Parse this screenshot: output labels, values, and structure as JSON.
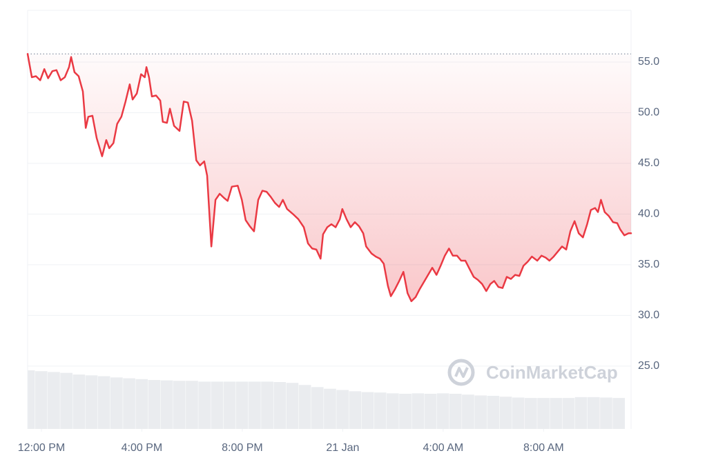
{
  "chart_data": {
    "type": "line",
    "watermark": "CoinMarketCap",
    "color": "#ea3943",
    "reference_line": 55.8,
    "xlim": [
      -33,
      1409
    ],
    "xticks": [
      {
        "value": 0,
        "label": "12:00 PM"
      },
      {
        "value": 240,
        "label": "4:00 PM"
      },
      {
        "value": 480,
        "label": "8:00 PM"
      },
      {
        "value": 720,
        "label": "21 Jan"
      },
      {
        "value": 960,
        "label": "4:00 AM"
      },
      {
        "value": 1200,
        "label": "8:00 AM"
      }
    ],
    "ylim": [
      18.8,
      60.1
    ],
    "yticks": [
      {
        "value": 25,
        "label": "25.0"
      },
      {
        "value": 30,
        "label": "30.0"
      },
      {
        "value": 35,
        "label": "35.0"
      },
      {
        "value": 40,
        "label": "40.0"
      },
      {
        "value": 45,
        "label": "45.0"
      },
      {
        "value": 50,
        "label": "50.0"
      },
      {
        "value": 55,
        "label": "55.0"
      }
    ],
    "grid": true,
    "x": [
      -33,
      -23,
      -13,
      -3,
      7,
      16,
      26,
      36,
      46,
      56,
      66,
      71,
      79,
      89,
      99,
      106,
      112,
      122,
      132,
      145,
      155,
      162,
      172,
      181,
      191,
      201,
      211,
      218,
      228,
      238,
      247,
      251,
      257,
      264,
      274,
      284,
      290,
      300,
      307,
      317,
      330,
      340,
      350,
      360,
      370,
      379,
      389,
      396,
      406,
      416,
      426,
      436,
      445,
      455,
      469,
      479,
      488,
      498,
      508,
      518,
      528,
      538,
      548,
      558,
      568,
      577,
      587,
      601,
      614,
      627,
      637,
      647,
      657,
      667,
      673,
      683,
      693,
      703,
      713,
      719,
      729,
      739,
      749,
      759,
      769,
      776,
      789,
      799,
      809,
      818,
      828,
      835,
      845,
      855,
      865,
      875,
      884,
      894,
      904,
      914,
      924,
      934,
      944,
      954,
      964,
      974,
      983,
      993,
      1003,
      1013,
      1023,
      1033,
      1043,
      1053,
      1063,
      1073,
      1082,
      1092,
      1102,
      1112,
      1122,
      1132,
      1142,
      1152,
      1162,
      1172,
      1185,
      1195,
      1205,
      1214,
      1224,
      1234,
      1244,
      1254,
      1264,
      1274,
      1284,
      1294,
      1304,
      1313,
      1323,
      1330,
      1337,
      1346,
      1356,
      1366,
      1376,
      1383,
      1393,
      1403,
      1409
    ],
    "values": [
      55.8,
      53.5,
      53.6,
      53.2,
      54.3,
      53.4,
      54.1,
      54.2,
      53.2,
      53.5,
      54.5,
      55.5,
      54.0,
      53.6,
      52.1,
      48.5,
      49.6,
      49.7,
      47.5,
      45.7,
      47.3,
      46.5,
      47.0,
      48.9,
      49.6,
      51.1,
      52.8,
      51.3,
      51.9,
      53.8,
      53.5,
      54.5,
      53.5,
      51.6,
      51.7,
      51.2,
      49.1,
      49.0,
      50.4,
      48.7,
      48.2,
      51.1,
      51.0,
      49.2,
      45.3,
      44.8,
      45.2,
      43.8,
      36.8,
      41.4,
      42.0,
      41.6,
      41.3,
      42.7,
      42.8,
      41.4,
      39.4,
      38.8,
      38.3,
      41.4,
      42.3,
      42.2,
      41.7,
      41.1,
      40.7,
      41.4,
      40.5,
      40.0,
      39.5,
      38.7,
      37.1,
      36.6,
      36.5,
      35.6,
      38.0,
      38.7,
      39.0,
      38.7,
      39.5,
      40.5,
      39.5,
      38.7,
      39.2,
      38.8,
      38.1,
      36.8,
      36.1,
      35.8,
      35.6,
      35.1,
      32.9,
      31.9,
      32.6,
      33.4,
      34.3,
      32.2,
      31.4,
      31.8,
      32.6,
      33.3,
      34.0,
      34.7,
      34.0,
      34.9,
      35.9,
      36.6,
      35.9,
      35.9,
      35.4,
      35.4,
      34.6,
      33.8,
      33.5,
      33.1,
      32.4,
      33.1,
      33.4,
      32.8,
      32.7,
      33.8,
      33.6,
      34.0,
      33.9,
      34.9,
      35.3,
      35.8,
      35.4,
      35.9,
      35.7,
      35.4,
      35.8,
      36.3,
      36.8,
      36.5,
      38.3,
      39.3,
      38.1,
      37.7,
      39.0,
      40.4,
      40.6,
      40.2,
      41.4,
      40.2,
      39.8,
      39.2,
      39.1,
      38.5,
      37.9,
      38.1,
      38.1
    ],
    "volume": {
      "color": "#eaecef",
      "ylim": [
        0,
        100
      ],
      "x": [
        -30,
        0,
        30,
        60,
        90,
        120,
        150,
        180,
        210,
        240,
        270,
        300,
        330,
        360,
        390,
        420,
        450,
        480,
        510,
        540,
        570,
        600,
        630,
        660,
        690,
        720,
        750,
        780,
        810,
        840,
        870,
        900,
        930,
        960,
        990,
        1020,
        1050,
        1080,
        1110,
        1140,
        1170,
        1200,
        1230,
        1260,
        1290,
        1320,
        1350,
        1380
      ],
      "values": [
        14.0,
        13.8,
        13.6,
        13.4,
        13.0,
        12.8,
        12.6,
        12.3,
        12.1,
        11.9,
        11.7,
        11.6,
        11.5,
        11.5,
        11.3,
        11.3,
        11.3,
        11.3,
        11.3,
        11.3,
        11.2,
        11.0,
        10.5,
        10.0,
        9.6,
        9.3,
        9.0,
        8.8,
        8.7,
        8.5,
        8.4,
        8.5,
        8.4,
        8.5,
        8.4,
        8.2,
        8.0,
        7.9,
        7.7,
        7.5,
        7.4,
        7.4,
        7.4,
        7.4,
        7.6,
        7.6,
        7.5,
        7.4
      ]
    }
  }
}
